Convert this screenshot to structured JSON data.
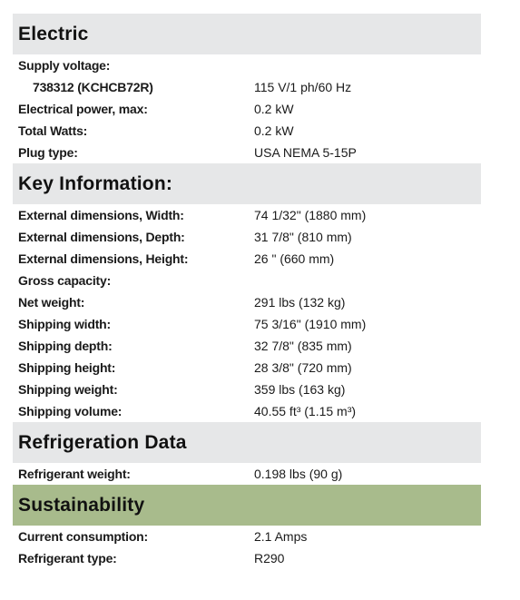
{
  "sections": [
    {
      "title": "Electric",
      "rows": [
        {
          "label": "Supply voltage:",
          "rows": [
            {
              "label": "738312 (KCHCB72R)",
              "value": "115 V/1 ph/60 Hz"
            }
          ]
        },
        {
          "label": "Electrical power, max:",
          "value": "0.2 kW"
        },
        {
          "label": "Total Watts:",
          "value": "0.2 kW"
        },
        {
          "label": "Plug type:",
          "value": "USA NEMA 5-15P"
        }
      ]
    },
    {
      "title": "Key Information:",
      "rows": [
        {
          "label": "External dimensions, Width:",
          "value": "74 1/32\" (1880 mm)"
        },
        {
          "label": "External dimensions, Depth:",
          "value": "31 7/8\" (810 mm)"
        },
        {
          "label": "External dimensions, Height:",
          "value": "26 \" (660 mm)"
        },
        {
          "label": "Gross capacity:"
        },
        {
          "label": "Net weight:",
          "value": "291 lbs (132 kg)"
        },
        {
          "label": "Shipping width:",
          "value": "75 3/16\" (1910 mm)"
        },
        {
          "label": "Shipping depth:",
          "value": "32 7/8\" (835 mm)"
        },
        {
          "label": "Shipping height:",
          "value": "28 3/8\" (720 mm)"
        },
        {
          "label": "Shipping weight:",
          "value": "359 lbs (163 kg)"
        },
        {
          "label": "Shipping volume:",
          "value": "40.55 ft³ (1.15 m³)"
        }
      ]
    },
    {
      "title": "Refrigeration Data",
      "rows": [
        {
          "label": "Refrigerant weight:",
          "value": "0.198 lbs (90 g)"
        }
      ]
    },
    {
      "title": "Sustainability",
      "rows": [
        {
          "label": "Current consumption:",
          "value": "2.1 Amps"
        },
        {
          "label": "Refrigerant type:",
          "value": "R290"
        }
      ]
    }
  ]
}
